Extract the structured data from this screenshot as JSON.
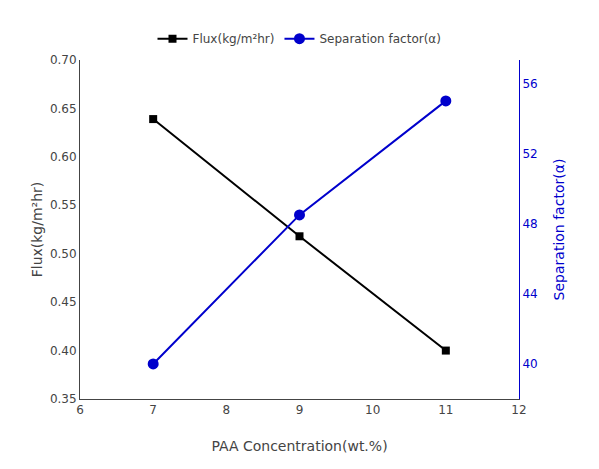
{
  "chart_data": {
    "type": "line",
    "xlabel": "PAA Concentration(wt.%)",
    "ylabel": "Flux(kg/m²hr)",
    "y2label": "Separation factor(α)",
    "x": [
      7,
      9,
      11
    ],
    "series": [
      {
        "name": "Flux(kg/m²hr)",
        "color": "#000000",
        "marker": "square",
        "values": [
          0.639,
          0.518,
          0.4
        ]
      },
      {
        "name": "Separation factor(α)",
        "color": "#0000cc",
        "marker": "circle",
        "axis": "y2",
        "values": [
          40.0,
          48.5,
          55.0
        ]
      }
    ],
    "xlim": [
      6,
      12
    ],
    "xticks": [
      6,
      7,
      8,
      9,
      10,
      11,
      12
    ],
    "ylim": [
      0.35,
      0.7
    ],
    "yticks": [
      0.35,
      {
        "value": 0.4,
        "label": "0.40"
      },
      0.45,
      {
        "value": 0.5,
        "label": "0.50"
      },
      0.55,
      {
        "value": 0.6,
        "label": "0.60"
      },
      0.65,
      {
        "value": 0.7,
        "label": "0.70"
      }
    ],
    "y2lim": [
      38.0,
      57.333
    ],
    "y2ticks": [
      40,
      44,
      48,
      52,
      56
    ],
    "grid": false,
    "legend": "upper center"
  }
}
